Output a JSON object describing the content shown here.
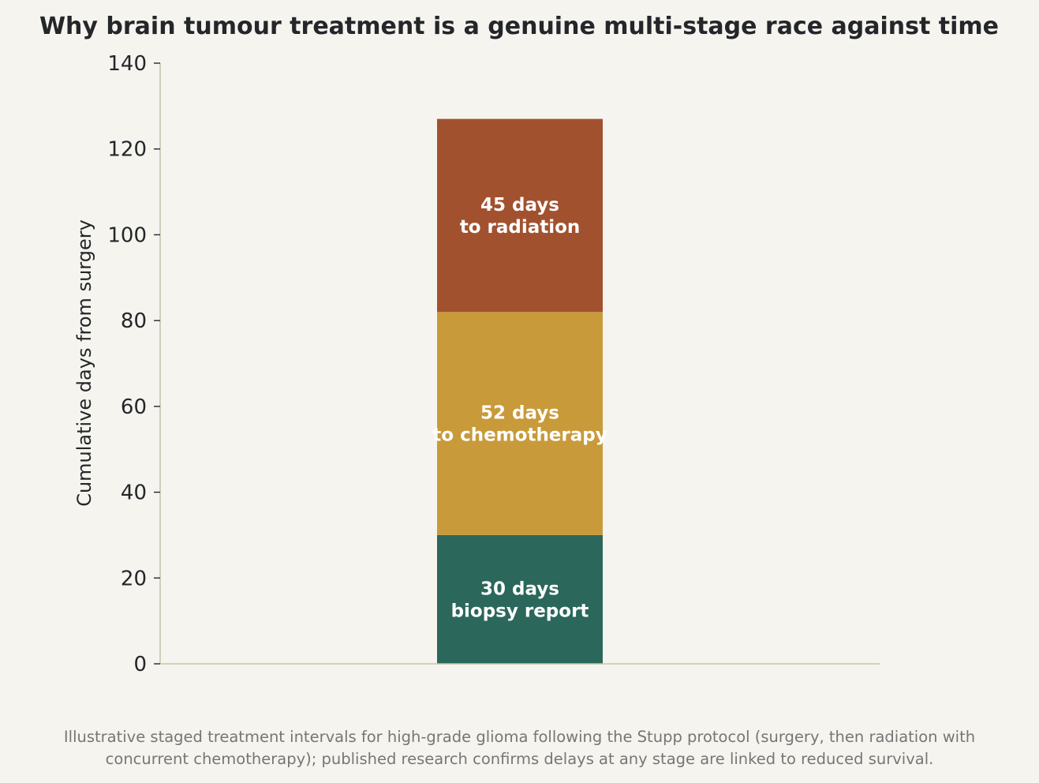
{
  "chart_data": {
    "type": "bar",
    "stacked": true,
    "title": "Why brain tumour treatment is a genuine multi-stage race against time",
    "xlabel": "",
    "ylabel": "Cumulative days from surgery",
    "ylim": [
      0,
      140
    ],
    "yticks": [
      0,
      20,
      40,
      60,
      80,
      100,
      120,
      140
    ],
    "categories": [
      ""
    ],
    "grid": false,
    "series": [
      {
        "values": [
          30
        ],
        "color": "#2b675b",
        "label_lines": [
          "30 days",
          "biopsy report"
        ]
      },
      {
        "values": [
          52
        ],
        "color": "#c89a3a",
        "label_lines": [
          "52 days",
          "to chemotherapy"
        ]
      },
      {
        "values": [
          45
        ],
        "color": "#a2512f",
        "label_lines": [
          "45 days",
          "to radiation"
        ]
      }
    ],
    "footnote_lines": [
      "Illustrative staged treatment intervals for high-grade glioma following the Stupp protocol (surgery, then radiation with",
      "concurrent chemotherapy); published research confirms delays at any stage are linked to reduced survival."
    ]
  },
  "colors": {
    "background": "#f5f4ef",
    "axis": "#c8c4ac",
    "text": "#24262a",
    "footnote": "#767676"
  }
}
